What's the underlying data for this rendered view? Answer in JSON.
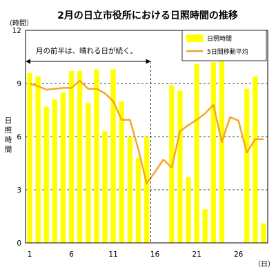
{
  "chart_data": {
    "type": "bar",
    "title": "2月の日立市役所における日照時間の推移",
    "y_unit": "（時間）",
    "x_unit": "（日）",
    "ylabel": "日照時間",
    "ylim": [
      0,
      12
    ],
    "yticks": [
      "0",
      "3",
      "6",
      "9",
      "12"
    ],
    "xticks": [
      {
        "day": 1,
        "label": "1"
      },
      {
        "day": 6,
        "label": "6"
      },
      {
        "day": 11,
        "label": "11"
      },
      {
        "day": 16,
        "label": "16"
      },
      {
        "day": 21,
        "label": "21"
      },
      {
        "day": 26,
        "label": "26"
      }
    ],
    "x_range": [
      1,
      29
    ],
    "grid": "horizontal dashed at 3, 6, 9",
    "legend_position": "top-right",
    "annotation": {
      "text": "月の前半は、晴れる日が続く。",
      "from_day": 0.5,
      "to_day": 15.5
    },
    "colors": {
      "bar": "#FFFF00",
      "line": "#F5A623",
      "axis": "#000000",
      "grid": "#000000"
    },
    "series": [
      {
        "name": "日照時間",
        "kind": "bar",
        "x": [
          1,
          2,
          3,
          4,
          5,
          6,
          7,
          8,
          9,
          10,
          11,
          12,
          13,
          14,
          15,
          16,
          17,
          18,
          19,
          20,
          21,
          22,
          23,
          24,
          25,
          26,
          27,
          28,
          29
        ],
        "values": [
          9.6,
          9.4,
          7.7,
          8.1,
          8.5,
          9.7,
          9.7,
          7.9,
          9.8,
          6.3,
          9.8,
          8.0,
          6.0,
          4.8,
          6.0,
          0,
          0,
          8.9,
          8.6,
          3.7,
          10.1,
          1.9,
          10.2,
          10.3,
          0,
          0,
          8.7,
          9.4,
          1.1
        ]
      },
      {
        "name": "5日間移動平均",
        "kind": "line",
        "x": [
          1,
          2,
          3,
          4,
          5,
          6,
          7,
          8,
          9,
          10,
          11,
          12,
          13,
          14,
          15,
          16,
          17,
          18,
          19,
          20,
          21,
          22,
          23,
          24,
          25,
          26,
          27,
          28,
          29
        ],
        "values": [
          9.0,
          8.85,
          8.65,
          8.7,
          8.75,
          8.75,
          9.15,
          8.7,
          8.7,
          8.45,
          8.0,
          6.95,
          6.95,
          5.3,
          3.35,
          4.0,
          4.7,
          4.25,
          6.3,
          6.65,
          6.95,
          7.3,
          7.8,
          5.7,
          7.1,
          6.9,
          5.1,
          5.85,
          5.85
        ]
      }
    ]
  }
}
